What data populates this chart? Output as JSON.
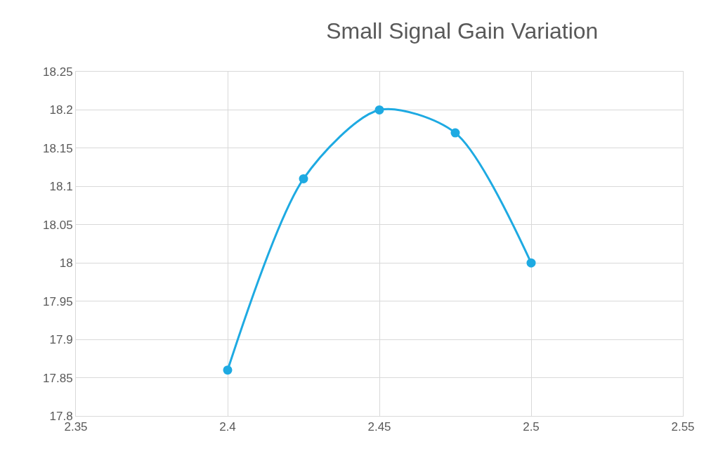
{
  "chart_data": {
    "type": "line",
    "title": "Small Signal Gain Variation",
    "x": [
      2.4,
      2.425,
      2.45,
      2.475,
      2.5
    ],
    "series": [
      {
        "color": "#1eaae2",
        "values": [
          17.86,
          18.11,
          18.2,
          18.17,
          18.0
        ]
      }
    ],
    "xlim": [
      2.35,
      2.55
    ],
    "xticks": [
      2.35,
      2.4,
      2.45,
      2.5,
      2.55
    ],
    "ylim": [
      17.8,
      18.25
    ],
    "yticks": [
      17.8,
      17.85,
      17.9,
      17.95,
      18,
      18.05,
      18.1,
      18.15,
      18.2,
      18.25
    ],
    "grid": true,
    "marker": "circle",
    "line_style": "solid"
  }
}
